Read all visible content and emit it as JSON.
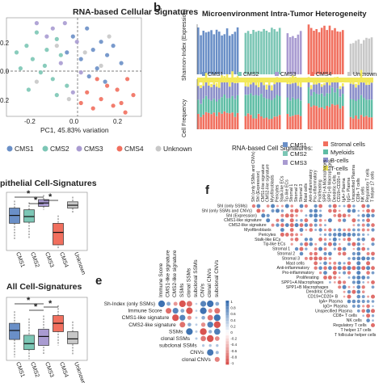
{
  "panel_letters": {
    "b": "b",
    "e": "e",
    "f": "f"
  },
  "colors": {
    "CMS1": "#6a8fc7",
    "CMS2": "#7cc6b5",
    "CMS3": "#a99bd1",
    "CMS4": "#f16f5e",
    "Unknown": "#c8c8c8",
    "Stromal cells": "#f16f5e",
    "Myeloids": "#5fbda5",
    "B-cells": "#8a8ec9",
    "T-cells": "#f2e85a"
  },
  "chart_data": [
    {
      "panel": "a",
      "type": "scatter",
      "title": "RNA-based Cellular Signatures",
      "xlabel": "PC1, 45.83% variation",
      "xticks": [
        "-0.2",
        "0.0",
        "0.2"
      ],
      "yticks": [
        "0.2",
        "0.0",
        "0.2"
      ],
      "legend": [
        "CMS1",
        "CMS2",
        "CMS3",
        "CMS4",
        "Unknown"
      ],
      "points": {
        "CMS1": [
          [
            0.05,
            0.28
          ],
          [
            0.08,
            0.12
          ],
          [
            0.12,
            0.18
          ],
          [
            0.02,
            0.05
          ],
          [
            0.15,
            0.08
          ],
          [
            -0.02,
            0.22
          ],
          [
            0.1,
            -0.02
          ],
          [
            0.18,
            0.15
          ],
          [
            0.06,
            -0.08
          ],
          [
            0.22,
            0.02
          ],
          [
            0.14,
            -0.12
          ],
          [
            -0.05,
            0.1
          ]
        ],
        "CMS2": [
          [
            -0.15,
            0.12
          ],
          [
            -0.22,
            0.05
          ],
          [
            -0.1,
            0.2
          ],
          [
            -0.18,
            -0.05
          ],
          [
            -0.25,
            0.15
          ],
          [
            -0.08,
            0.08
          ],
          [
            -0.12,
            -0.1
          ],
          [
            -0.2,
            0.25
          ],
          [
            -0.28,
            -0.02
          ],
          [
            -0.05,
            -0.15
          ],
          [
            -0.16,
            0.0
          ],
          [
            -0.3,
            0.1
          ],
          [
            -0.1,
            -0.22
          ],
          [
            -0.24,
            -0.18
          ]
        ],
        "CMS3": [
          [
            -0.12,
            0.28
          ],
          [
            -0.06,
            0.32
          ],
          [
            -0.2,
            0.32
          ],
          [
            0.0,
            0.18
          ],
          [
            -0.08,
            0.02
          ],
          [
            -0.15,
            0.22
          ],
          [
            0.02,
            -0.05
          ],
          [
            -0.02,
            -0.2
          ]
        ],
        "CMS4": [
          [
            0.05,
            -0.2
          ],
          [
            0.12,
            -0.25
          ],
          [
            0.2,
            -0.18
          ],
          [
            0.18,
            -0.3
          ],
          [
            0.25,
            -0.1
          ],
          [
            0.08,
            -0.32
          ],
          [
            0.22,
            -0.28
          ],
          [
            0.15,
            -0.15
          ],
          [
            0.28,
            -0.22
          ],
          [
            0.1,
            -0.1
          ],
          [
            0.02,
            -0.28
          ],
          [
            0.24,
            -0.35
          ]
        ],
        "Unknown": [
          [
            -0.1,
            0.15
          ],
          [
            0.04,
            0.1
          ],
          [
            -0.2,
            -0.12
          ],
          [
            0.16,
            0.22
          ],
          [
            -0.04,
            -0.25
          ],
          [
            0.12,
            0.0
          ]
        ]
      },
      "xlim": [
        -0.35,
        0.32
      ],
      "ylim": [
        -0.38,
        0.36
      ]
    },
    {
      "panel": "b",
      "type": "bar",
      "title": "Microenvironment Intra-Tumor Heterogeneity",
      "ylabel_top": "Shannon-Index (Expression)",
      "ylabel_bottom": "Cell Frequency",
      "groups": [
        "CMS1",
        "CMS2",
        "CMS3",
        "CMS4",
        "Unknown"
      ],
      "group_counts": [
        16,
        14,
        6,
        14,
        9
      ],
      "shannon_group_mean": [
        0.86,
        0.84,
        0.78,
        0.92,
        0.68
      ],
      "composition_mean": {
        "T-cells": [
          0.12,
          0.1,
          0.11,
          0.08,
          0.13
        ],
        "B-cells": [
          0.28,
          0.22,
          0.3,
          0.18,
          0.3
        ],
        "Myeloids": [
          0.3,
          0.42,
          0.32,
          0.28,
          0.34
        ],
        "Stromal cells": [
          0.3,
          0.26,
          0.27,
          0.46,
          0.23
        ]
      },
      "legend_title": "RNA-based Cell Signatures:",
      "cell_legend": [
        "Stromal cells",
        "Myeloids",
        "B-cells",
        "T-cells"
      ]
    },
    {
      "panel": "c",
      "type": "box",
      "title": "pithelial Cell-Signatures",
      "categories": [
        "CMS1",
        "CMS2",
        "CMS3",
        "CMS4",
        "Unknown"
      ],
      "q1": [
        0.48,
        0.5,
        0.78,
        0.1,
        0.75
      ],
      "median": [
        0.62,
        0.6,
        0.84,
        0.32,
        0.8
      ],
      "q3": [
        0.75,
        0.72,
        0.9,
        0.48,
        0.86
      ],
      "whisker_low": [
        0.18,
        0.2,
        0.72,
        0.02,
        0.65
      ],
      "whisker_high": [
        0.88,
        0.85,
        0.98,
        0.62,
        0.95
      ],
      "significance_marks": [
        "*",
        "*",
        "*"
      ]
    },
    {
      "panel": "d",
      "type": "box",
      "title": "All Cell-Signatures",
      "categories": [
        "CMS1",
        "CMS2",
        "CMS3",
        "CMS4",
        "Unknown"
      ],
      "q1": [
        0.35,
        0.18,
        0.25,
        0.48,
        0.28
      ],
      "median": [
        0.5,
        0.28,
        0.4,
        0.62,
        0.36
      ],
      "q3": [
        0.62,
        0.42,
        0.52,
        0.75,
        0.48
      ],
      "whisker_low": [
        0.05,
        0.02,
        0.1,
        0.25,
        0.1
      ],
      "whisker_high": [
        0.82,
        0.7,
        0.75,
        0.92,
        0.65
      ],
      "significance_marks": [
        "*",
        "*",
        "*"
      ]
    },
    {
      "panel": "e",
      "type": "heatmap",
      "row_labels": [
        "Sh-Index (only SSMs)",
        "Immune Score",
        "CMS1-like signature",
        "CMS2-like signature",
        "SSMs",
        "clonal SSMs",
        "subclonal SSMs",
        "CNVs",
        "clonal CNVs"
      ],
      "col_labels": [
        "Immune Score",
        "CMS1-like signature",
        "CMS2-like signature",
        "SSMs",
        "clonal SSMs",
        "subclonal SSMs",
        "CNVs",
        "clonal CNVs",
        "subclonal CNVs"
      ],
      "colorbar_ticks": [
        "1",
        "0.8",
        "0.6",
        "0.4",
        "0.2",
        "0",
        "-0.2",
        "-0.4",
        "-0.6",
        "-0.8",
        "-1"
      ]
    },
    {
      "panel": "f",
      "type": "heatmap",
      "labels": [
        "ShI (only SSMs)",
        "ShI (only SSMs and CNVs)",
        "ShI (Expression)",
        "CMS1-like signature",
        "CMS2-like signature",
        "Myofibroblasts",
        "Pericytes",
        "Stalk-like ECs",
        "Tip-like ECs",
        "Stromal 1",
        "Stromal 2",
        "Stromal 3",
        "Mast cells",
        "Anti-inflammatory",
        "Pro-inflammatory",
        "Proliferating",
        "SPP1+A Macrophages",
        "SPP1+B Macrophages",
        "Dendritic Cells",
        "CD19+CD20+ B",
        "IgA+ Plasma",
        "IgG+ Plasma",
        "Unspecified Plasma",
        "CD8+ T cells",
        "NK cells",
        "Regulatory T cells",
        "T helper 17 cells",
        "T follicular helper cells"
      ],
      "col_labels": [
        "ShI (only SSMs and CNVs)",
        "ShI (Expression)",
        "CMS1-like signature",
        "CMS2-like signature",
        "Myofibroblasts",
        "Pericytes",
        "Stalk-like ECs",
        "Tip-like ECs",
        "Stromal 1",
        "Stromal 2",
        "Stromal 3",
        "Mast cells",
        "Anti-inflammatory",
        "Pro-inflammatory",
        "Proliferating",
        "SPP1+A Macrophages",
        "SPP1+B Macrophages",
        "Dendritic Cells",
        "CD19+CD20+ B",
        "IgA+ Plasma",
        "IgG+ Plasma",
        "Unspecified Plasma",
        "CD8+ T cells",
        "NK cells",
        "Regulatory T cells",
        "T helper 17 cells"
      ]
    }
  ]
}
